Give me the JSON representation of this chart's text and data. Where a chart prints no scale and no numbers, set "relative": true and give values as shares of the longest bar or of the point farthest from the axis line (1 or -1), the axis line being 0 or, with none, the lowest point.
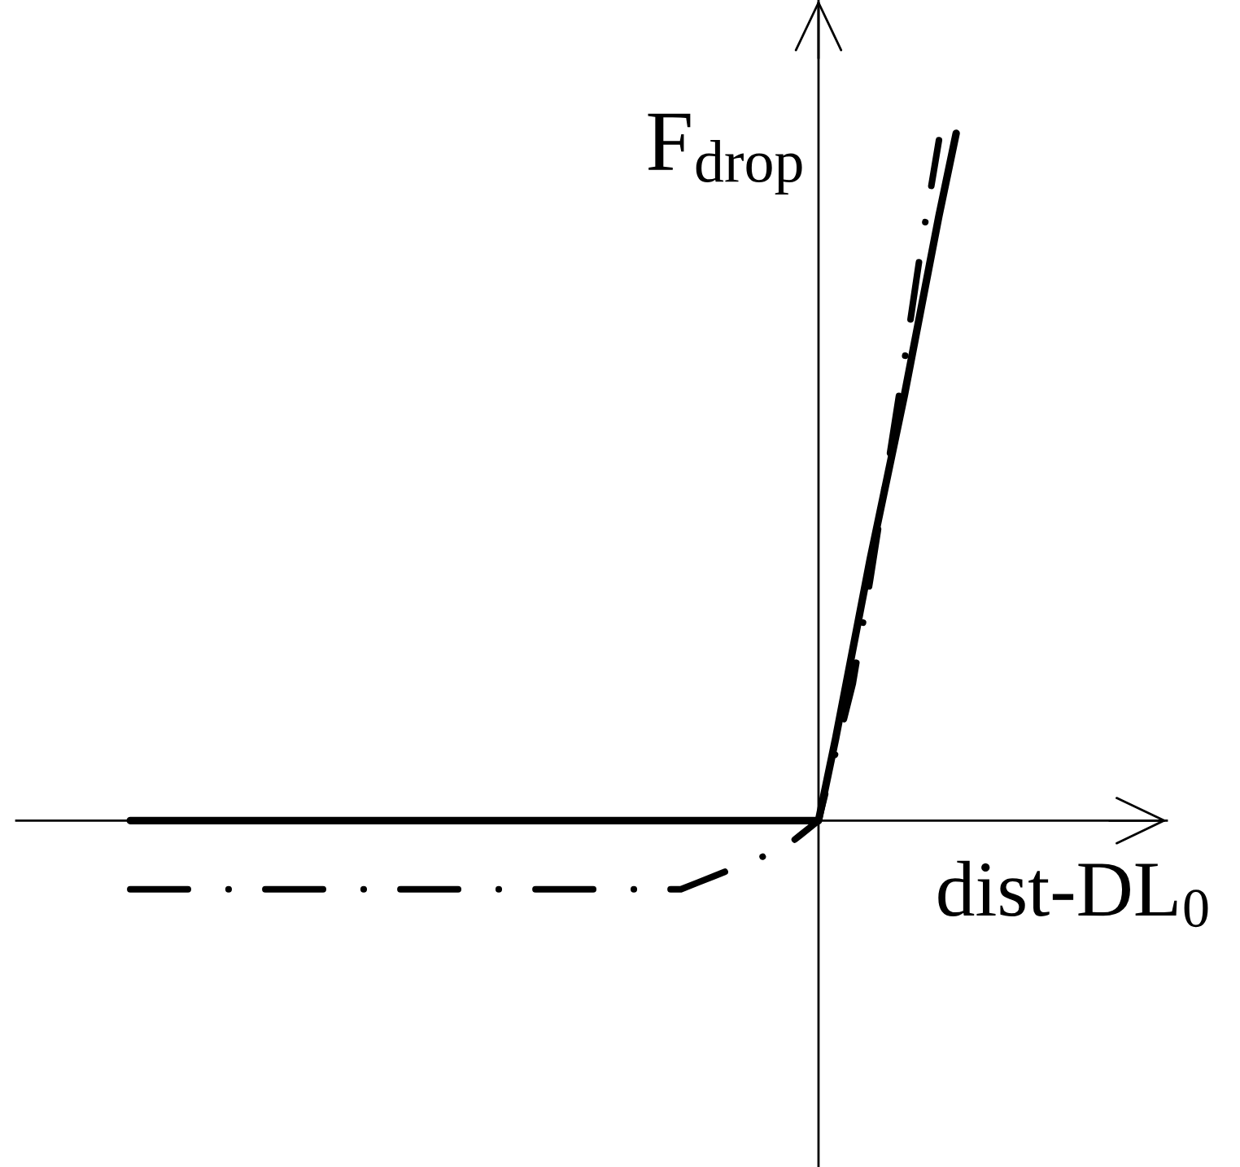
{
  "chart_data": {
    "type": "line",
    "relative": true,
    "xlabel": "dist-DL$_{0}$",
    "ylabel": "F$_{drop}$",
    "categories": [
      null,
      null,
      null,
      null,
      null,
      null,
      null,
      null,
      null,
      null,
      null,
      null,
      null,
      null,
      null,
      null,
      null,
      null,
      null,
      null,
      null,
      null,
      null,
      null,
      null,
      null,
      null,
      null,
      null,
      null,
      null,
      null,
      null,
      null,
      null,
      null,
      null,
      null,
      null,
      null,
      null,
      null,
      null,
      null,
      null,
      null,
      null,
      null,
      null
    ],
    "series": [
      {
        "color": "#000000",
        "line_style": "solid",
        "values": [
          0,
          0,
          0,
          0,
          0,
          0,
          0,
          0,
          0,
          0,
          0,
          0,
          0,
          0,
          0,
          0,
          0,
          0,
          0,
          0,
          0,
          0,
          0,
          0,
          0,
          0,
          0,
          0,
          0,
          0,
          0,
          0,
          0,
          0,
          0,
          0,
          0,
          0,
          0,
          0,
          0,
          0.12,
          0.25,
          0.38,
          0.5,
          0.62,
          0.75,
          0.88,
          1
        ]
      },
      {
        "color": "#000000",
        "line_style": "dashdot",
        "values": [
          -0.1,
          -0.1,
          -0.1,
          -0.1,
          -0.1,
          -0.1,
          -0.1,
          -0.1,
          -0.1,
          -0.1,
          -0.1,
          -0.1,
          -0.1,
          -0.1,
          -0.1,
          -0.1,
          -0.1,
          -0.1,
          -0.1,
          -0.1,
          -0.1,
          -0.1,
          -0.1,
          -0.1,
          -0.1,
          -0.1,
          -0.1,
          -0.1,
          -0.1,
          -0.1,
          -0.1,
          -0.1,
          -0.1,
          -0.09,
          -0.08,
          -0.07,
          -0.06,
          -0.05,
          -0.04,
          -0.02,
          0,
          0.1,
          0.2,
          0.35,
          0.51,
          0.67,
          0.84,
          0.99,
          null
        ]
      }
    ]
  }
}
